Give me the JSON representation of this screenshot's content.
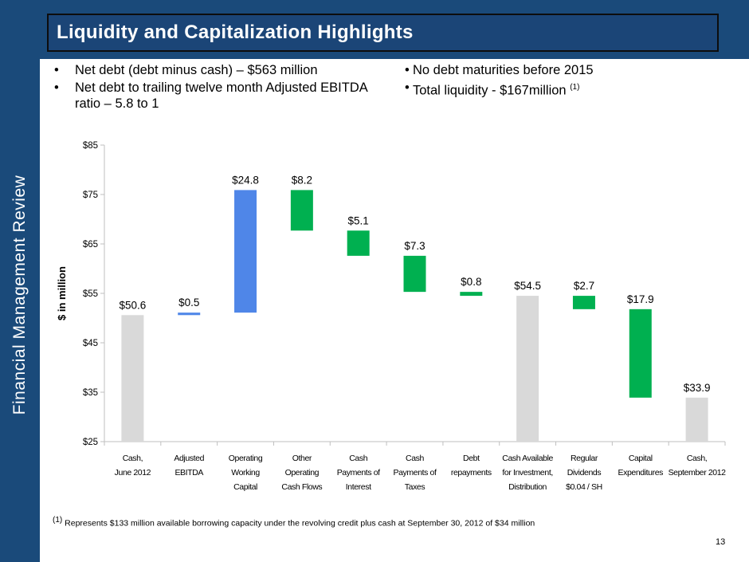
{
  "sidebar_label": "Financial Management Review",
  "title": "Liquidity and Capitalization Highlights",
  "bullets_left": [
    {
      "marker": "•",
      "text": "Net debt (debt minus cash) – $563 million"
    },
    {
      "marker": "•",
      "text": "Net debt to trailing twelve month Adjusted EBITDA ratio – 5.8 to 1"
    }
  ],
  "bullets_right": [
    {
      "marker": "•",
      "text": "No debt maturities before 2015"
    },
    {
      "marker": "•",
      "text": "Total liquidity - $167million",
      "sup": "(1)"
    }
  ],
  "footnote": {
    "sup": "(1)",
    "text": "Represents $133 million available borrowing capacity under the revolving credit plus cash at September 30, 2012 of $34 million"
  },
  "page_number": "13",
  "colors": {
    "navy": "#1a4a7a",
    "gray": "#d9d9d9",
    "blue": "#4f86e8",
    "green": "#00b050"
  },
  "chart_data": {
    "type": "waterfall",
    "title": "",
    "ylabel": "$ in million",
    "ylim": [
      25,
      85
    ],
    "yticks": [
      25,
      35,
      45,
      55,
      65,
      75,
      85
    ],
    "ytick_labels": [
      "$25",
      "$35",
      "$45",
      "$55",
      "$65",
      "$75",
      "$85"
    ],
    "categories": [
      [
        "Cash,",
        "June 2012"
      ],
      [
        "Adjusted",
        "EBITDA"
      ],
      [
        "Operating",
        "Working",
        "Capital"
      ],
      [
        "Other",
        "Operating",
        "Cash Flows"
      ],
      [
        "Cash",
        "Payments of",
        "Interest"
      ],
      [
        "Cash",
        "Payments of",
        "Taxes"
      ],
      [
        "Debt",
        "repayments"
      ],
      [
        "Cash Available",
        "for Investment,",
        "Distribution"
      ],
      [
        "Regular",
        "Dividends",
        "$0.04 / SH"
      ],
      [
        "Capital",
        "Expenditures"
      ],
      [
        "Cash,",
        "September 2012"
      ]
    ],
    "bars": [
      {
        "kind": "total",
        "color": "gray",
        "start": 25,
        "end": 50.6,
        "label": "$50.6"
      },
      {
        "kind": "increase",
        "color": "blue",
        "start": 50.6,
        "end": 51.1,
        "label": "$0.5"
      },
      {
        "kind": "increase",
        "color": "blue",
        "start": 51.1,
        "end": 75.9,
        "label": "$24.8"
      },
      {
        "kind": "decrease",
        "color": "green",
        "start": 75.9,
        "end": 67.7,
        "label": "$8.2"
      },
      {
        "kind": "decrease",
        "color": "green",
        "start": 67.7,
        "end": 62.6,
        "label": "$5.1"
      },
      {
        "kind": "decrease",
        "color": "green",
        "start": 62.6,
        "end": 55.3,
        "label": "$7.3"
      },
      {
        "kind": "decrease",
        "color": "green",
        "start": 55.3,
        "end": 54.5,
        "label": "$0.8"
      },
      {
        "kind": "total",
        "color": "gray",
        "start": 25,
        "end": 54.5,
        "label": "$54.5"
      },
      {
        "kind": "decrease",
        "color": "green",
        "start": 54.5,
        "end": 51.8,
        "label": "$2.7"
      },
      {
        "kind": "decrease",
        "color": "green",
        "start": 51.8,
        "end": 33.9,
        "label": "$17.9"
      },
      {
        "kind": "total",
        "color": "gray",
        "start": 25,
        "end": 33.9,
        "label": "$33.9"
      }
    ]
  }
}
